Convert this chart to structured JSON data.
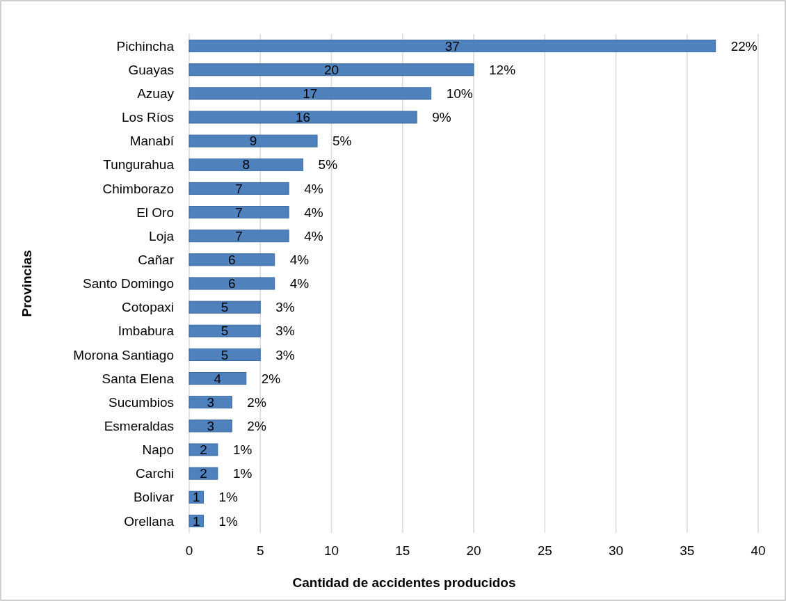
{
  "chart_data": {
    "type": "bar",
    "orientation": "horizontal",
    "xlabel": "Cantidad de accidentes producidos",
    "ylabel": "Provincias",
    "categories": [
      "Pichincha",
      "Guayas",
      "Azuay",
      "Los Ríos",
      "Manabí",
      "Tungurahua",
      "Chimborazo",
      "El Oro",
      "Loja",
      "Cañar",
      "Santo Domingo",
      "Cotopaxi",
      "Imbabura",
      "Morona Santiago",
      "Santa Elena",
      "Sucumbios",
      "Esmeraldas",
      "Napo",
      "Carchi",
      "Bolivar",
      "Orellana"
    ],
    "values": [
      37,
      20,
      17,
      16,
      9,
      8,
      7,
      7,
      7,
      6,
      6,
      5,
      5,
      5,
      4,
      3,
      3,
      2,
      2,
      1,
      1
    ],
    "color": "#4f81bd",
    "xlim": [
      0,
      40
    ],
    "xticks": [
      0,
      5,
      10,
      15,
      20,
      25,
      30,
      35,
      40
    ],
    "grid": "x",
    "data_labels": true,
    "annotations": [
      {
        "text": "22%",
        "x": 37,
        "y": "Pichincha"
      },
      {
        "text": "12%",
        "x": 20,
        "y": "Guayas"
      },
      {
        "text": "10%",
        "x": 17,
        "y": "Azuay"
      },
      {
        "text": "9%",
        "x": 16,
        "y": "Los Ríos"
      },
      {
        "text": "5%",
        "x": 9,
        "y": "Manabí"
      },
      {
        "text": "5%",
        "x": 8,
        "y": "Tungurahua"
      },
      {
        "text": "4%",
        "x": 7,
        "y": "Chimborazo"
      },
      {
        "text": "4%",
        "x": 7,
        "y": "El Oro"
      },
      {
        "text": "4%",
        "x": 7,
        "y": "Loja"
      },
      {
        "text": "4%",
        "x": 6,
        "y": "Cañar"
      },
      {
        "text": "4%",
        "x": 6,
        "y": "Santo Domingo"
      },
      {
        "text": "3%",
        "x": 5,
        "y": "Cotopaxi"
      },
      {
        "text": "3%",
        "x": 5,
        "y": "Imbabura"
      },
      {
        "text": "3%",
        "x": 5,
        "y": "Morona Santiago"
      },
      {
        "text": "2%",
        "x": 4,
        "y": "Santa Elena"
      },
      {
        "text": "2%",
        "x": 3,
        "y": "Sucumbios"
      },
      {
        "text": "2%",
        "x": 3,
        "y": "Esmeraldas"
      },
      {
        "text": "1%",
        "x": 2,
        "y": "Napo"
      },
      {
        "text": "1%",
        "x": 2,
        "y": "Carchi"
      },
      {
        "text": "1%",
        "x": 1,
        "y": "Bolivar"
      },
      {
        "text": "1%",
        "x": 1,
        "y": "Orellana"
      }
    ]
  }
}
